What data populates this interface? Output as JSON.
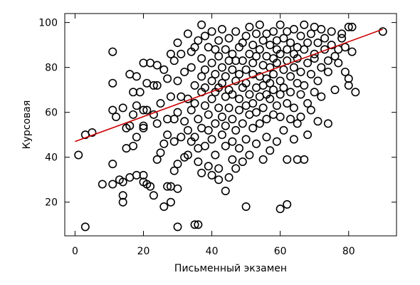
{
  "chart_data": {
    "type": "scatter",
    "title": "",
    "xlabel": "Письменный экзамен",
    "ylabel": "Курсовая",
    "xlim": [
      -3,
      94
    ],
    "ylim": [
      5,
      104
    ],
    "xticks": [
      0,
      20,
      40,
      60,
      80
    ],
    "yticks": [
      20,
      40,
      60,
      80,
      100
    ],
    "grid": false,
    "legend": "none",
    "marker": "open-circle",
    "marker_color": "#000000",
    "regression": {
      "x": [
        0,
        90
      ],
      "y": [
        47,
        97
      ],
      "color": "#cc0000"
    },
    "points": [
      [
        1,
        41
      ],
      [
        3,
        9
      ],
      [
        3,
        50
      ],
      [
        5,
        51
      ],
      [
        8,
        28
      ],
      [
        11,
        28
      ],
      [
        11,
        37
      ],
      [
        11,
        61
      ],
      [
        11,
        87
      ],
      [
        11,
        73
      ],
      [
        12,
        58
      ],
      [
        13,
        30
      ],
      [
        14,
        29
      ],
      [
        14,
        23
      ],
      [
        14,
        20
      ],
      [
        14,
        62
      ],
      [
        15,
        44
      ],
      [
        15,
        53
      ],
      [
        16,
        54
      ],
      [
        16,
        31
      ],
      [
        16,
        77
      ],
      [
        17,
        69
      ],
      [
        17,
        59
      ],
      [
        17,
        45
      ],
      [
        18,
        49
      ],
      [
        18,
        32
      ],
      [
        18,
        63
      ],
      [
        18,
        76
      ],
      [
        19,
        69
      ],
      [
        20,
        53
      ],
      [
        20,
        54
      ],
      [
        20,
        61
      ],
      [
        20,
        32
      ],
      [
        20,
        29
      ],
      [
        20,
        82
      ],
      [
        21,
        28
      ],
      [
        21,
        73
      ],
      [
        21,
        61
      ],
      [
        22,
        82
      ],
      [
        22,
        27
      ],
      [
        23,
        72
      ],
      [
        23,
        23
      ],
      [
        23,
        59
      ],
      [
        24,
        72
      ],
      [
        24,
        39
      ],
      [
        24,
        55
      ],
      [
        24,
        81
      ],
      [
        25,
        64
      ],
      [
        25,
        42
      ],
      [
        26,
        18
      ],
      [
        26,
        46
      ],
      [
        26,
        79
      ],
      [
        27,
        50
      ],
      [
        27,
        27
      ],
      [
        27,
        57
      ],
      [
        27,
        75
      ],
      [
        28,
        86
      ],
      [
        28,
        20
      ],
      [
        28,
        67
      ],
      [
        28,
        27
      ],
      [
        29,
        34
      ],
      [
        29,
        83
      ],
      [
        29,
        57
      ],
      [
        29,
        47
      ],
      [
        30,
        9
      ],
      [
        30,
        26
      ],
      [
        30,
        37
      ],
      [
        30,
        91
      ],
      [
        30,
        60
      ],
      [
        30,
        74
      ],
      [
        31,
        67
      ],
      [
        31,
        49
      ],
      [
        31,
        86
      ],
      [
        32,
        40
      ],
      [
        32,
        78
      ],
      [
        32,
        56
      ],
      [
        33,
        41
      ],
      [
        33,
        95
      ],
      [
        33,
        66
      ],
      [
        33,
        52
      ],
      [
        34,
        80
      ],
      [
        34,
        61
      ],
      [
        34,
        87
      ],
      [
        34,
        47
      ],
      [
        35,
        10
      ],
      [
        35,
        72
      ],
      [
        35,
        49
      ],
      [
        35,
        64
      ],
      [
        35,
        89
      ],
      [
        36,
        92
      ],
      [
        36,
        10
      ],
      [
        36,
        44
      ],
      [
        36,
        38
      ],
      [
        36,
        57
      ],
      [
        37,
        76
      ],
      [
        37,
        69
      ],
      [
        37,
        33
      ],
      [
        37,
        84
      ],
      [
        37,
        99
      ],
      [
        37,
        53
      ],
      [
        38,
        79
      ],
      [
        38,
        63
      ],
      [
        38,
        45
      ],
      [
        38,
        94
      ],
      [
        38,
        71
      ],
      [
        39,
        52
      ],
      [
        39,
        36
      ],
      [
        39,
        89
      ],
      [
        39,
        59
      ],
      [
        40,
        66
      ],
      [
        40,
        32
      ],
      [
        40,
        96
      ],
      [
        40,
        82
      ],
      [
        40,
        48
      ],
      [
        40,
        74
      ],
      [
        41,
        69
      ],
      [
        41,
        41
      ],
      [
        41,
        88
      ],
      [
        41,
        55
      ],
      [
        41,
        77
      ],
      [
        42,
        30
      ],
      [
        42,
        62
      ],
      [
        42,
        85
      ],
      [
        42,
        35
      ],
      [
        42,
        92
      ],
      [
        42,
        71
      ],
      [
        43,
        50
      ],
      [
        43,
        80
      ],
      [
        43,
        58
      ],
      [
        43,
        97
      ],
      [
        43,
        73
      ],
      [
        44,
        45
      ],
      [
        44,
        67
      ],
      [
        44,
        88
      ],
      [
        44,
        25
      ],
      [
        44,
        76
      ],
      [
        44,
        54
      ],
      [
        45,
        83
      ],
      [
        45,
        62
      ],
      [
        45,
        31
      ],
      [
        45,
        93
      ],
      [
        45,
        70
      ],
      [
        46,
        39
      ],
      [
        46,
        79
      ],
      [
        46,
        57
      ],
      [
        46,
        86
      ],
      [
        46,
        47
      ],
      [
        46,
        68
      ],
      [
        47,
        74
      ],
      [
        47,
        96
      ],
      [
        47,
        52
      ],
      [
        47,
        83
      ],
      [
        47,
        35
      ],
      [
        48,
        61
      ],
      [
        48,
        89
      ],
      [
        48,
        77
      ],
      [
        48,
        44
      ],
      [
        48,
        66
      ],
      [
        49,
        91
      ],
      [
        49,
        71
      ],
      [
        49,
        55
      ],
      [
        49,
        83
      ],
      [
        49,
        38
      ],
      [
        50,
        18
      ],
      [
        50,
        63
      ],
      [
        50,
        79
      ],
      [
        50,
        94
      ],
      [
        50,
        48
      ],
      [
        50,
        73
      ],
      [
        51,
        86
      ],
      [
        51,
        59
      ],
      [
        51,
        68
      ],
      [
        51,
        98
      ],
      [
        51,
        41
      ],
      [
        52,
        77
      ],
      [
        52,
        90
      ],
      [
        52,
        53
      ],
      [
        52,
        82
      ],
      [
        52,
        64
      ],
      [
        53,
        71
      ],
      [
        53,
        95
      ],
      [
        53,
        46
      ],
      [
        53,
        85
      ],
      [
        53,
        60
      ],
      [
        54,
        76
      ],
      [
        54,
        88
      ],
      [
        54,
        55
      ],
      [
        54,
        67
      ],
      [
        54,
        99
      ],
      [
        55,
        39
      ],
      [
        55,
        81
      ],
      [
        55,
        72
      ],
      [
        55,
        92
      ],
      [
        55,
        62
      ],
      [
        56,
        57
      ],
      [
        56,
        85
      ],
      [
        56,
        75
      ],
      [
        56,
        95
      ],
      [
        56,
        49
      ],
      [
        56,
        68
      ],
      [
        57,
        80
      ],
      [
        57,
        66
      ],
      [
        57,
        90
      ],
      [
        57,
        43
      ],
      [
        57,
        73
      ],
      [
        58,
        84
      ],
      [
        58,
        59
      ],
      [
        58,
        96
      ],
      [
        58,
        77
      ],
      [
        58,
        70
      ],
      [
        59,
        88
      ],
      [
        59,
        63
      ],
      [
        59,
        82
      ],
      [
        59,
        47
      ],
      [
        59,
        92
      ],
      [
        60,
        17
      ],
      [
        60,
        74
      ],
      [
        60,
        99
      ],
      [
        60,
        58
      ],
      [
        60,
        86
      ],
      [
        60,
        68
      ],
      [
        61,
        79
      ],
      [
        61,
        93
      ],
      [
        61,
        52
      ],
      [
        61,
        71
      ],
      [
        62,
        19
      ],
      [
        62,
        88
      ],
      [
        62,
        64
      ],
      [
        62,
        96
      ],
      [
        62,
        83
      ],
      [
        62,
        39
      ],
      [
        63,
        76
      ],
      [
        63,
        57
      ],
      [
        63,
        91
      ],
      [
        63,
        69
      ],
      [
        64,
        86
      ],
      [
        64,
        48
      ],
      [
        64,
        80
      ],
      [
        64,
        97
      ],
      [
        64,
        62
      ],
      [
        65,
        73
      ],
      [
        65,
        89
      ],
      [
        65,
        39
      ],
      [
        65,
        55
      ],
      [
        65,
        84
      ],
      [
        66,
        94
      ],
      [
        66,
        68
      ],
      [
        66,
        78
      ],
      [
        66,
        58
      ],
      [
        67,
        88
      ],
      [
        67,
        39
      ],
      [
        67,
        72
      ],
      [
        67,
        99
      ],
      [
        68,
        82
      ],
      [
        68,
        64
      ],
      [
        68,
        91
      ],
      [
        68,
        50
      ],
      [
        69,
        77
      ],
      [
        69,
        95
      ],
      [
        69,
        61
      ],
      [
        70,
        86
      ],
      [
        70,
        69
      ],
      [
        70,
        98
      ],
      [
        70,
        84
      ],
      [
        71,
        56
      ],
      [
        71,
        91
      ],
      [
        71,
        74
      ],
      [
        72,
        80
      ],
      [
        72,
        97
      ],
      [
        72,
        67
      ],
      [
        73,
        88
      ],
      [
        73,
        93
      ],
      [
        74,
        55
      ],
      [
        74,
        83
      ],
      [
        74,
        78
      ],
      [
        75,
        90
      ],
      [
        75,
        96
      ],
      [
        76,
        70
      ],
      [
        76,
        85
      ],
      [
        77,
        88
      ],
      [
        77,
        82
      ],
      [
        78,
        93
      ],
      [
        78,
        95
      ],
      [
        79,
        78
      ],
      [
        79,
        89
      ],
      [
        80,
        98
      ],
      [
        80,
        75
      ],
      [
        80,
        72
      ],
      [
        81,
        87
      ],
      [
        81,
        98
      ],
      [
        82,
        69
      ],
      [
        90,
        96
      ]
    ]
  }
}
